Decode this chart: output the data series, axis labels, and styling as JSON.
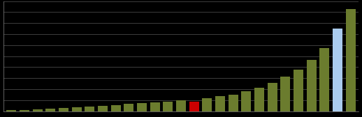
{
  "values": [
    0.5,
    0.7,
    1.0,
    1.3,
    1.6,
    2.0,
    2.4,
    2.8,
    3.2,
    3.6,
    4.0,
    4.5,
    5.0,
    5.5,
    4.8,
    6.5,
    7.5,
    8.5,
    10.0,
    12.0,
    14.5,
    17.5,
    21.0,
    26.0,
    32.0,
    42.0,
    52.0
  ],
  "colors": [
    "#6b7c2e",
    "#6b7c2e",
    "#6b7c2e",
    "#6b7c2e",
    "#6b7c2e",
    "#6b7c2e",
    "#6b7c2e",
    "#6b7c2e",
    "#6b7c2e",
    "#6b7c2e",
    "#6b7c2e",
    "#6b7c2e",
    "#6b7c2e",
    "#6b7c2e",
    "#cc0000",
    "#6b7c2e",
    "#6b7c2e",
    "#6b7c2e",
    "#6b7c2e",
    "#6b7c2e",
    "#6b7c2e",
    "#6b7c2e",
    "#6b7c2e",
    "#6b7c2e",
    "#6b7c2e",
    "#aaccee",
    "#6b7c2e"
  ],
  "background_color": "#000000",
  "grid_color": "#555555",
  "axis_color": "#888888",
  "ylim": [
    0,
    56
  ],
  "yticks": 10,
  "bar_width": 0.75
}
